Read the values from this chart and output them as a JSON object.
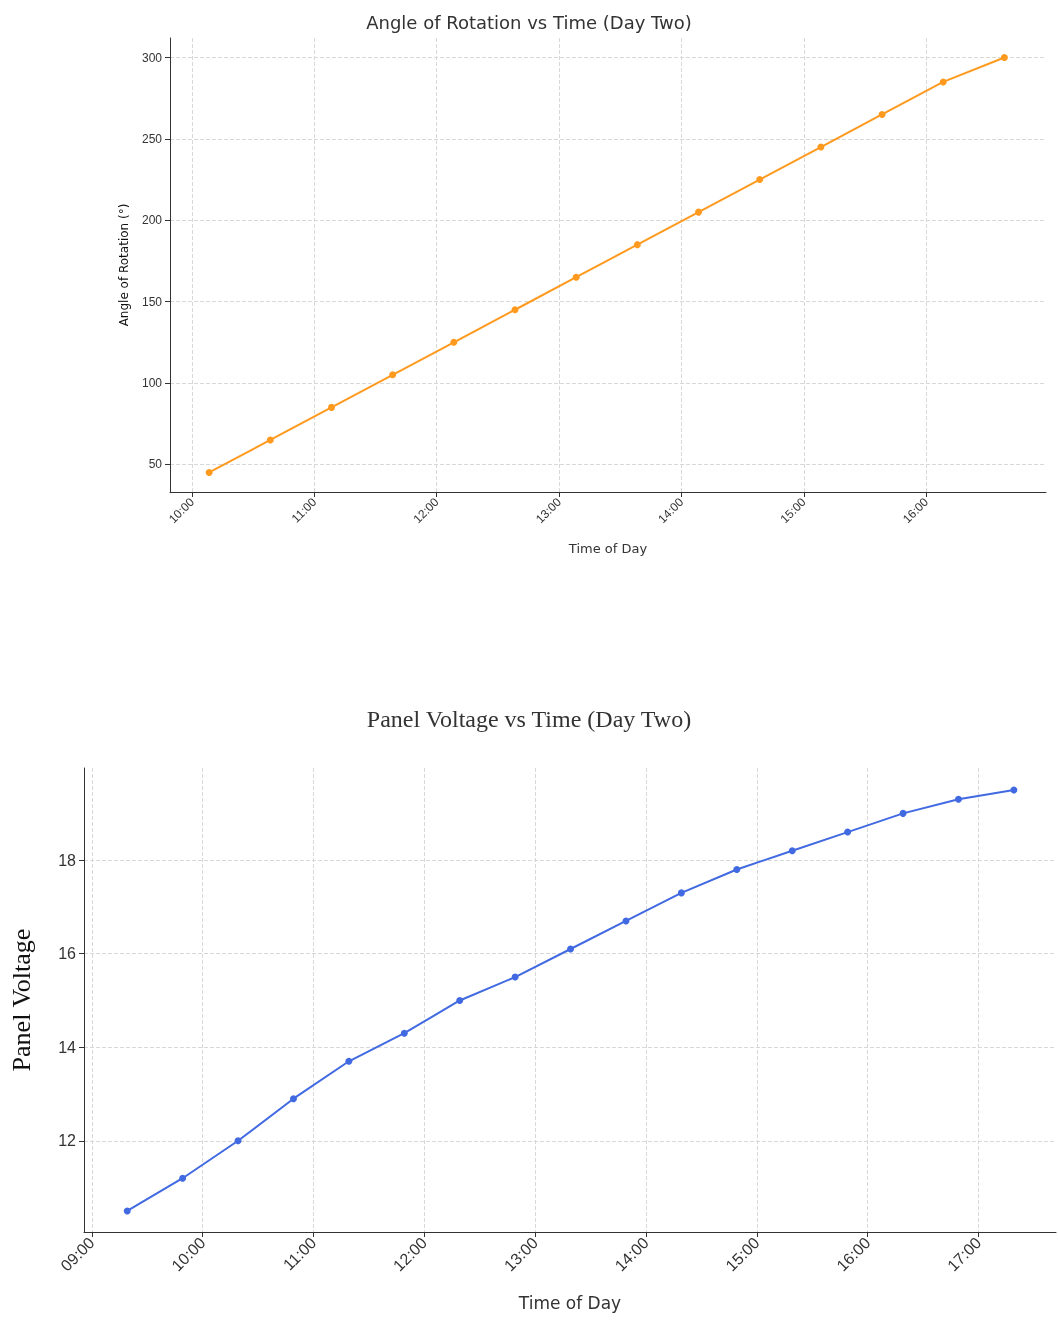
{
  "chart_data": [
    {
      "type": "line",
      "title": "Angle of Rotation vs Time (Day Two)",
      "xlabel": "Time of Day",
      "ylabel": "Angle of Rotation (°)",
      "x": [
        10.14,
        10.64,
        11.14,
        11.64,
        12.14,
        12.64,
        13.14,
        13.64,
        14.14,
        14.64,
        15.14,
        15.64,
        16.14,
        16.64
      ],
      "series": [
        {
          "color": "#ff9a1f",
          "values": [
            45,
            65,
            85,
            105,
            125,
            145,
            165,
            185,
            205,
            225,
            245,
            265,
            285,
            300
          ]
        }
      ],
      "xlim": [
        9.82,
        16.98
      ],
      "xticks": [
        {
          "value": 10,
          "label": "10:00"
        },
        {
          "value": 11,
          "label": "11:00"
        },
        {
          "value": 12,
          "label": "12:00"
        },
        {
          "value": 13,
          "label": "13:00"
        },
        {
          "value": 14,
          "label": "14:00"
        },
        {
          "value": 15,
          "label": "15:00"
        },
        {
          "value": 16,
          "label": "16:00"
        }
      ],
      "ylim": [
        33,
        312
      ],
      "yticks": [
        50,
        100,
        150,
        200,
        250,
        300
      ],
      "grid": true,
      "marker": "circle"
    },
    {
      "type": "line",
      "title": "Panel Voltage vs Time (Day Two)",
      "xlabel": "Time of Day",
      "ylabel": "Panel Voltage",
      "x": [
        9.32,
        9.82,
        10.32,
        10.82,
        11.32,
        11.82,
        12.32,
        12.82,
        13.32,
        13.82,
        14.32,
        14.82,
        15.32,
        15.82,
        16.32,
        16.82,
        17.32
      ],
      "series": [
        {
          "color": "#4169e1",
          "values": [
            10.5,
            11.2,
            12.0,
            12.9,
            13.7,
            14.3,
            15.0,
            15.5,
            16.1,
            16.7,
            17.3,
            17.8,
            18.2,
            18.6,
            19.0,
            19.3,
            19.5
          ]
        }
      ],
      "xlim": [
        8.93,
        17.7
      ],
      "xticks": [
        {
          "value": 9,
          "label": "09:00"
        },
        {
          "value": 10,
          "label": "10:00"
        },
        {
          "value": 11,
          "label": "11:00"
        },
        {
          "value": 12,
          "label": "12:00"
        },
        {
          "value": 13,
          "label": "13:00"
        },
        {
          "value": 14,
          "label": "14:00"
        },
        {
          "value": 15,
          "label": "15:00"
        },
        {
          "value": 16,
          "label": "16:00"
        },
        {
          "value": 17,
          "label": "17:00"
        }
      ],
      "ylim": [
        10.05,
        19.97
      ],
      "yticks": [
        12,
        14,
        16,
        18
      ],
      "grid": true,
      "marker": "circle"
    }
  ]
}
